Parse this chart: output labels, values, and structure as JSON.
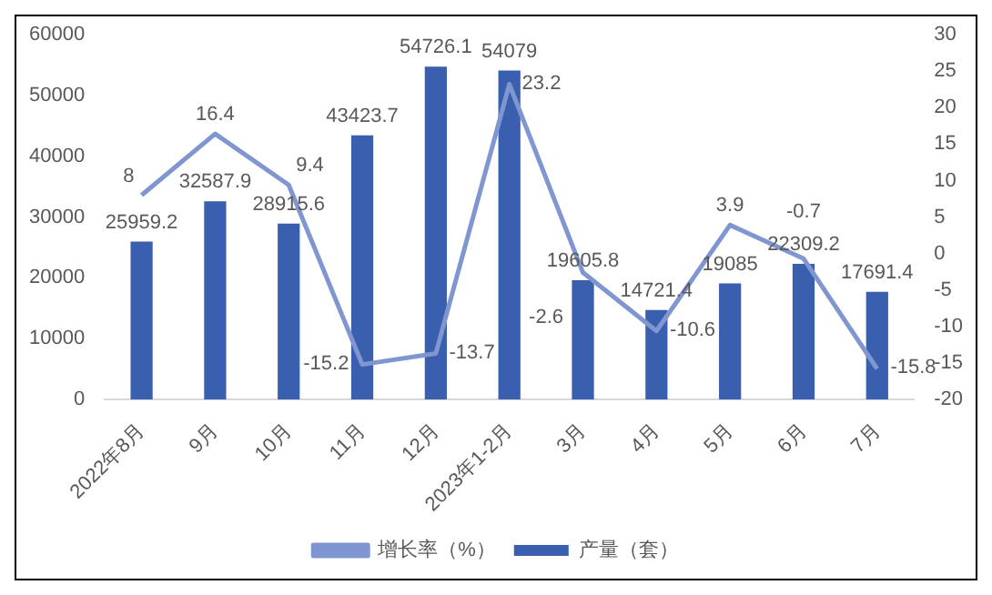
{
  "chart_data": {
    "type": "bar",
    "categories": [
      "2022年8月",
      "9月",
      "10月",
      "11月",
      "12月",
      "2023年1-2月",
      "3月",
      "4月",
      "5月",
      "6月",
      "7月"
    ],
    "series": [
      {
        "name": "产量（套）",
        "color": "#3a5fae",
        "values": [
          25959.2,
          32587.9,
          28915.6,
          43423.7,
          54726.1,
          54079,
          19605.8,
          14721.4,
          19085,
          22309.2,
          17691.4
        ]
      },
      {
        "name": "增长率（%）",
        "type": "line",
        "axis": "y2",
        "color": "#7f96d0",
        "values": [
          8,
          16.4,
          9.4,
          -15.2,
          -13.7,
          23.2,
          -2.6,
          -10.6,
          3.9,
          -0.7,
          -15.8
        ]
      }
    ],
    "ylim": [
      0,
      60000
    ],
    "yticks": [
      0,
      10000,
      20000,
      30000,
      40000,
      50000,
      60000
    ],
    "y2lim": [
      -20,
      30
    ],
    "y2ticks": [
      -20,
      -15,
      -10,
      -5,
      0,
      5,
      10,
      15,
      20,
      25,
      30
    ],
    "data_labels": true,
    "legend": "bottom",
    "grid": false,
    "marker": "none",
    "line_style": "solid"
  }
}
